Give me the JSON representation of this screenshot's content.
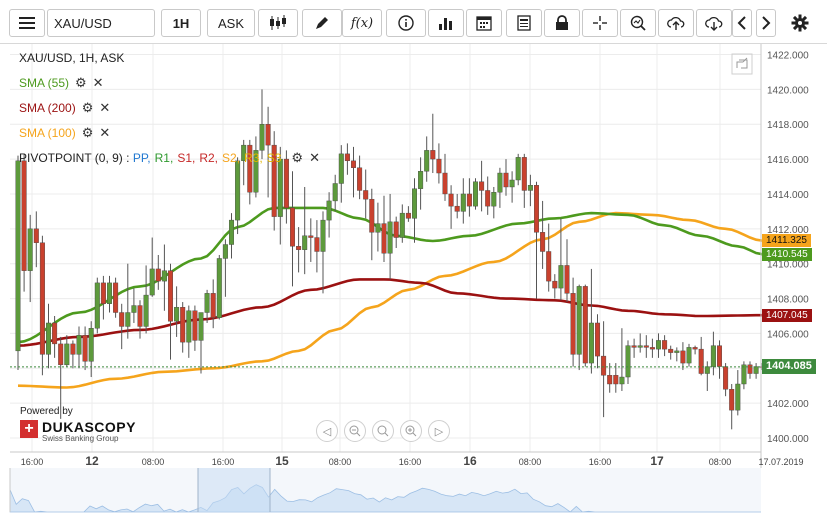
{
  "toolbar": {
    "symbol": "XAU/USD",
    "timeframe": "1H",
    "side": "ASK",
    "fx_label": "f(x)"
  },
  "legend": {
    "title": "XAU/USD, 1H, ASK",
    "sma55": "SMA (55)",
    "sma200": "SMA (200)",
    "sma100": "SMA (100)",
    "pivot_prefix": "PIVOTPOINT (0, 9)",
    "pivot_sep": " : ",
    "pivot_items": [
      "PP,",
      "R1,",
      "S1,",
      "R2,",
      "S2,",
      "R3,",
      "S3"
    ]
  },
  "colors": {
    "up": "#5d9a3c",
    "down": "#c9412e",
    "sma55": "#4d9a1e",
    "sma200": "#9b1111",
    "sma100": "#f5a41c",
    "price_line": "#3d8a3d",
    "pp": "#1f77d0",
    "r1": "#2f9a2f",
    "s1": "#c62828",
    "r2": "#c62828",
    "s2": "#f5a41c",
    "r3": "#e0b400",
    "s3": "#e0b400"
  },
  "price_tags": {
    "sma100": "1411.325",
    "sma55": "1410.545",
    "sma200": "1407.045",
    "last": "1404.085"
  },
  "branding": {
    "powered_by": "Powered by",
    "name": "DUKASCOPY",
    "subtitle": "Swiss Banking Group"
  },
  "chart_data": {
    "type": "candlestick",
    "title": "XAU/USD, 1H, ASK",
    "ylim": [
      1399.2,
      1422.6
    ],
    "y_ticks": [
      "1422.000",
      "1420.000",
      "1418.000",
      "1416.000",
      "1414.000",
      "1412.000",
      "1410.000",
      "1408.000",
      "1406.000",
      "1404.000",
      "1402.000",
      "1400.000"
    ],
    "x_ticks": [
      "16:00",
      "12",
      "08:00",
      "16:00",
      "15",
      "08:00",
      "16:00",
      "16",
      "08:00",
      "16:00",
      "17",
      "08:00",
      "17.07.2019"
    ],
    "bar_count": 123,
    "last_price": 1404.085,
    "ohlc": [
      [
        1405.0,
        1416.2,
        1403.9,
        1415.9
      ],
      [
        1415.9,
        1416.3,
        1408.4,
        1409.6
      ],
      [
        1409.6,
        1412.8,
        1407.8,
        1412.0
      ],
      [
        1412.0,
        1413.0,
        1409.8,
        1411.2
      ],
      [
        1411.2,
        1411.6,
        1403.6,
        1404.8
      ],
      [
        1404.8,
        1407.7,
        1404.0,
        1406.6
      ],
      [
        1406.6,
        1407.0,
        1404.6,
        1405.4
      ],
      [
        1405.4,
        1405.8,
        1401.1,
        1404.2
      ],
      [
        1404.2,
        1405.9,
        1404.1,
        1405.4
      ],
      [
        1405.4,
        1405.6,
        1404.0,
        1404.8
      ],
      [
        1404.8,
        1406.4,
        1404.0,
        1405.9
      ],
      [
        1405.9,
        1406.4,
        1403.9,
        1404.4
      ],
      [
        1404.4,
        1406.7,
        1403.5,
        1406.3
      ],
      [
        1406.3,
        1409.2,
        1406.0,
        1408.9
      ],
      [
        1408.9,
        1409.3,
        1406.8,
        1407.7
      ],
      [
        1407.7,
        1409.3,
        1407.2,
        1408.9
      ],
      [
        1408.9,
        1409.2,
        1406.9,
        1407.2
      ],
      [
        1407.2,
        1407.7,
        1405.1,
        1406.4
      ],
      [
        1406.4,
        1410.0,
        1405.7,
        1407.2
      ],
      [
        1407.2,
        1408.6,
        1406.6,
        1407.6
      ],
      [
        1407.6,
        1407.9,
        1405.7,
        1406.4
      ],
      [
        1406.4,
        1409.9,
        1406.0,
        1408.2
      ],
      [
        1408.2,
        1411.5,
        1408.1,
        1409.7
      ],
      [
        1409.7,
        1410.5,
        1408.5,
        1409.0
      ],
      [
        1409.0,
        1411.1,
        1407.3,
        1409.6
      ],
      [
        1409.6,
        1410.0,
        1404.5,
        1406.7
      ],
      [
        1406.7,
        1408.7,
        1405.8,
        1407.5
      ],
      [
        1407.5,
        1407.8,
        1404.9,
        1405.5
      ],
      [
        1405.5,
        1407.6,
        1404.6,
        1407.3
      ],
      [
        1407.3,
        1407.6,
        1405.0,
        1405.6
      ],
      [
        1405.6,
        1407.0,
        1403.7,
        1407.2
      ],
      [
        1407.2,
        1408.5,
        1406.6,
        1408.3
      ],
      [
        1408.3,
        1409.1,
        1406.3,
        1406.9
      ],
      [
        1406.9,
        1410.5,
        1406.8,
        1410.3
      ],
      [
        1410.3,
        1411.4,
        1408.1,
        1411.1
      ],
      [
        1411.1,
        1412.9,
        1410.3,
        1412.5
      ],
      [
        1412.5,
        1416.1,
        1411.7,
        1415.9
      ],
      [
        1415.9,
        1417.1,
        1414.5,
        1416.8
      ],
      [
        1416.8,
        1417.1,
        1413.4,
        1414.1
      ],
      [
        1414.1,
        1417.3,
        1413.8,
        1416.5
      ],
      [
        1416.5,
        1420.0,
        1416.0,
        1418.0
      ],
      [
        1418.0,
        1419.0,
        1413.8,
        1416.8
      ],
      [
        1416.8,
        1417.6,
        1411.9,
        1412.7
      ],
      [
        1412.7,
        1416.7,
        1411.1,
        1416.0
      ],
      [
        1416.0,
        1416.5,
        1412.3,
        1413.2
      ],
      [
        1413.2,
        1415.3,
        1408.7,
        1411.0
      ],
      [
        1411.0,
        1412.1,
        1409.5,
        1410.8
      ],
      [
        1410.8,
        1414.4,
        1409.4,
        1411.6
      ],
      [
        1411.6,
        1412.6,
        1410.1,
        1411.5
      ],
      [
        1411.5,
        1412.5,
        1409.5,
        1410.7
      ],
      [
        1410.7,
        1413.0,
        1408.3,
        1412.5
      ],
      [
        1412.5,
        1414.1,
        1411.5,
        1413.6
      ],
      [
        1413.6,
        1415.1,
        1413.0,
        1414.6
      ],
      [
        1414.6,
        1416.8,
        1413.5,
        1416.3
      ],
      [
        1416.3,
        1416.9,
        1415.1,
        1415.9
      ],
      [
        1415.9,
        1416.7,
        1413.8,
        1415.5
      ],
      [
        1415.5,
        1416.2,
        1413.7,
        1414.2
      ],
      [
        1414.2,
        1415.4,
        1412.6,
        1413.7
      ],
      [
        1413.7,
        1414.3,
        1410.2,
        1411.8
      ],
      [
        1411.8,
        1413.5,
        1410.7,
        1412.3
      ],
      [
        1412.3,
        1413.9,
        1410.1,
        1410.6
      ],
      [
        1410.6,
        1414.0,
        1409.1,
        1412.4
      ],
      [
        1412.4,
        1412.7,
        1410.9,
        1411.5
      ],
      [
        1411.5,
        1413.4,
        1411.2,
        1412.9
      ],
      [
        1412.9,
        1413.3,
        1412.4,
        1412.6
      ],
      [
        1412.6,
        1414.9,
        1411.2,
        1414.3
      ],
      [
        1414.3,
        1416.1,
        1413.1,
        1415.3
      ],
      [
        1415.3,
        1417.3,
        1414.7,
        1416.5
      ],
      [
        1416.5,
        1418.6,
        1415.2,
        1416.0
      ],
      [
        1416.0,
        1416.9,
        1414.6,
        1415.2
      ],
      [
        1415.2,
        1416.3,
        1413.6,
        1414.0
      ],
      [
        1414.0,
        1414.5,
        1412.0,
        1413.3
      ],
      [
        1413.3,
        1414.0,
        1412.6,
        1413.0
      ],
      [
        1413.0,
        1414.9,
        1412.3,
        1414.0
      ],
      [
        1414.0,
        1414.9,
        1412.7,
        1413.3
      ],
      [
        1413.3,
        1414.9,
        1413.1,
        1414.7
      ],
      [
        1414.7,
        1415.9,
        1413.0,
        1414.2
      ],
      [
        1414.2,
        1415.0,
        1412.8,
        1413.3
      ],
      [
        1413.3,
        1414.4,
        1412.6,
        1414.1
      ],
      [
        1414.1,
        1415.5,
        1413.2,
        1415.2
      ],
      [
        1415.2,
        1416.0,
        1413.9,
        1414.4
      ],
      [
        1414.4,
        1415.3,
        1413.5,
        1414.8
      ],
      [
        1414.8,
        1416.3,
        1414.5,
        1416.1
      ],
      [
        1416.1,
        1416.3,
        1413.2,
        1414.2
      ],
      [
        1414.2,
        1415.1,
        1413.3,
        1414.5
      ],
      [
        1414.5,
        1414.7,
        1408.0,
        1411.8
      ],
      [
        1411.8,
        1413.6,
        1409.7,
        1410.7
      ],
      [
        1410.7,
        1412.3,
        1408.4,
        1409.0
      ],
      [
        1409.0,
        1409.4,
        1408.0,
        1408.6
      ],
      [
        1408.6,
        1412.6,
        1407.9,
        1409.9
      ],
      [
        1409.9,
        1411.4,
        1407.8,
        1408.3
      ],
      [
        1408.3,
        1409.2,
        1404.1,
        1404.8
      ],
      [
        1404.8,
        1408.8,
        1403.9,
        1408.7
      ],
      [
        1408.7,
        1408.8,
        1404.1,
        1404.3
      ],
      [
        1404.3,
        1409.7,
        1403.7,
        1406.6
      ],
      [
        1406.6,
        1407.1,
        1404.0,
        1404.7
      ],
      [
        1404.7,
        1406.7,
        1401.2,
        1403.6
      ],
      [
        1403.6,
        1404.3,
        1402.6,
        1403.1
      ],
      [
        1403.6,
        1404.3,
        1402.6,
        1403.1
      ],
      [
        1403.1,
        1406.3,
        1402.7,
        1403.5
      ],
      [
        1403.5,
        1405.6,
        1403.1,
        1405.3
      ],
      [
        1405.3,
        1405.7,
        1404.6,
        1405.2
      ],
      [
        1405.2,
        1406.0,
        1404.9,
        1405.3
      ],
      [
        1405.3,
        1405.9,
        1404.6,
        1405.2
      ],
      [
        1405.2,
        1405.7,
        1404.6,
        1405.1
      ],
      [
        1405.1,
        1406.0,
        1404.6,
        1405.6
      ],
      [
        1405.6,
        1405.9,
        1404.7,
        1405.1
      ],
      [
        1405.1,
        1405.3,
        1404.5,
        1404.9
      ],
      [
        1404.9,
        1405.2,
        1404.4,
        1405.0
      ],
      [
        1405.0,
        1405.5,
        1403.9,
        1404.3
      ],
      [
        1404.3,
        1405.4,
        1404.1,
        1405.2
      ],
      [
        1405.2,
        1405.3,
        1404.8,
        1405.1
      ],
      [
        1405.1,
        1405.8,
        1403.6,
        1403.7
      ],
      [
        1403.7,
        1404.4,
        1402.7,
        1404.1
      ],
      [
        1404.1,
        1406.1,
        1403.6,
        1405.3
      ],
      [
        1405.3,
        1405.6,
        1403.4,
        1404.1
      ],
      [
        1404.1,
        1404.3,
        1402.4,
        1402.8
      ],
      [
        1402.8,
        1403.1,
        1400.5,
        1401.6
      ],
      [
        1401.6,
        1403.9,
        1401.3,
        1403.1
      ],
      [
        1403.1,
        1404.4,
        1402.8,
        1404.2
      ],
      [
        1404.2,
        1404.4,
        1403.4,
        1403.7
      ],
      [
        1403.7,
        1404.3,
        1403.4,
        1404.1
      ],
      [
        1404.1,
        1404.3,
        1403.9,
        1404.085
      ]
    ],
    "sma55_anchors": [
      [
        0,
        1405.5
      ],
      [
        10,
        1407.2
      ],
      [
        20,
        1408.7
      ],
      [
        30,
        1410.3
      ],
      [
        36,
        1412.1
      ],
      [
        42,
        1413.2
      ],
      [
        50,
        1413.2
      ],
      [
        56,
        1412.6
      ],
      [
        62,
        1411.6
      ],
      [
        68,
        1411.3
      ],
      [
        74,
        1411.6
      ],
      [
        82,
        1412.3
      ],
      [
        88,
        1412.6
      ],
      [
        94,
        1412.9
      ],
      [
        100,
        1412.8
      ],
      [
        106,
        1412.2
      ],
      [
        112,
        1411.6
      ],
      [
        118,
        1411.0
      ],
      [
        122,
        1410.545
      ]
    ],
    "sma200_anchors": [
      [
        0,
        1405.3
      ],
      [
        10,
        1405.8
      ],
      [
        20,
        1406.2
      ],
      [
        30,
        1406.8
      ],
      [
        40,
        1407.5
      ],
      [
        48,
        1408.5
      ],
      [
        56,
        1409.1
      ],
      [
        60,
        1409.1
      ],
      [
        66,
        1408.9
      ],
      [
        72,
        1408.3
      ],
      [
        80,
        1408.0
      ],
      [
        88,
        1407.9
      ],
      [
        94,
        1407.6
      ],
      [
        100,
        1407.3
      ],
      [
        106,
        1407.1
      ],
      [
        112,
        1407.0
      ],
      [
        122,
        1407.045
      ]
    ],
    "sma100_anchors": [
      [
        0,
        1403.0
      ],
      [
        8,
        1402.9
      ],
      [
        16,
        1403.4
      ],
      [
        24,
        1403.8
      ],
      [
        32,
        1404.0
      ],
      [
        40,
        1404.4
      ],
      [
        46,
        1405.0
      ],
      [
        52,
        1406.2
      ],
      [
        58,
        1407.5
      ],
      [
        64,
        1408.5
      ],
      [
        70,
        1409.3
      ],
      [
        78,
        1410.1
      ],
      [
        86,
        1411.4
      ],
      [
        92,
        1412.4
      ],
      [
        98,
        1412.9
      ],
      [
        104,
        1412.8
      ],
      [
        110,
        1412.5
      ],
      [
        116,
        1412.0
      ],
      [
        122,
        1411.325
      ]
    ]
  }
}
